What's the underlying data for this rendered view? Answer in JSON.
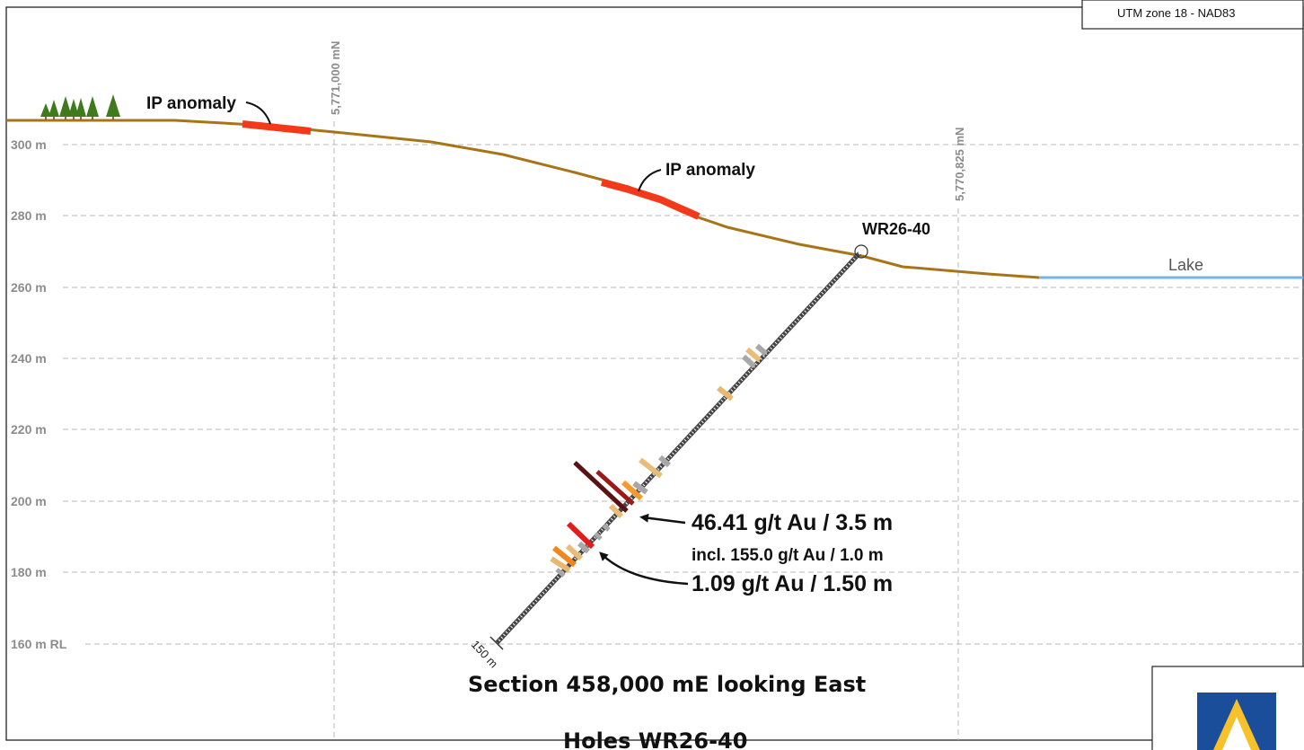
{
  "crs_label": "UTM zone 18 - NAD83",
  "elevation_labels": [
    "300 m",
    "280 m",
    "260 m",
    "240 m",
    "220 m",
    "200 m",
    "180 m",
    "160 m RL"
  ],
  "northing_labels": [
    "5,771,000 mN",
    "5,770,825 mN"
  ],
  "ip_anomaly_label": "IP anomaly",
  "lake_label": "Lake",
  "hole_id": "WR26-40",
  "end_of_hole_depth": "150 m",
  "intercepts": {
    "main": "46.41 g/t Au / 3.5 m",
    "including": "incl. 155.0 g/t Au / 1.0 m",
    "second": "1.09 g/t Au / 1.50 m"
  },
  "section_title": "Section 458,000 mE looking East",
  "holes_title": "Holes WR26-40",
  "colors": {
    "topography": "#a87418",
    "ip_anomaly": "#f23a1a",
    "lake": "#74b4e8",
    "gridline": "#b4b4b4",
    "logo_blue": "#1a4d9a",
    "logo_yellow": "#f6c12a"
  },
  "icons": [
    "tree-icon",
    "company-logo-icon",
    "collar-circle-icon"
  ]
}
